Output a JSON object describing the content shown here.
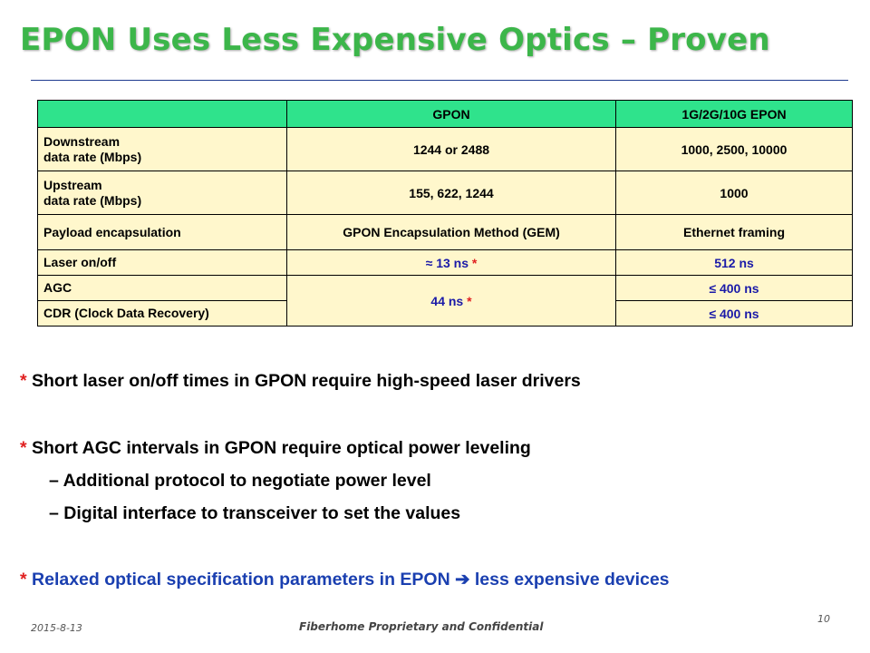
{
  "slide": {
    "title": "EPON Uses Less Expensive Optics – Proven",
    "title_color": "#3cb64a",
    "rule_color": "#1f3a8f"
  },
  "table": {
    "header_bg": "#2fe38c",
    "body_bg": "#fff7cc",
    "headers": [
      "",
      "GPON",
      "1G/2G/10G EPON"
    ],
    "rows": [
      {
        "label_line1": "Downstream",
        "label_line2": "data rate (Mbps)",
        "gpon": "1244 or 2488",
        "epon": "1000, 2500, 10000"
      },
      {
        "label_line1": "Upstream",
        "label_line2": "data rate (Mbps)",
        "gpon": "155, 622, 1244",
        "epon": "1000"
      },
      {
        "label": "Payload encapsulation",
        "gpon": "GPON Encapsulation Method (GEM)",
        "epon": "Ethernet framing"
      },
      {
        "label": "Laser on/off",
        "gpon_symbol": "≈",
        "gpon_value": "13 ns",
        "gpon_star": "*",
        "epon": "512 ns"
      },
      {
        "label": "AGC",
        "gpon_value": "44 ns",
        "gpon_star": "*",
        "epon_symbol": "≤",
        "epon": "400 ns"
      },
      {
        "label": "CDR (Clock Data Recovery)",
        "epon_symbol": "≤",
        "epon": "400 ns"
      }
    ]
  },
  "notes": {
    "star": "*",
    "note1": "Short laser on/off times in GPON require high-speed laser drivers",
    "note2": "Short AGC intervals in GPON require optical power leveling",
    "note2_sub": [
      {
        "dash": "–",
        "text": "Additional protocol to negotiate power level"
      },
      {
        "dash": "–",
        "text": "Digital interface to transceiver to set the values"
      }
    ],
    "note3_a": "Relaxed optical specification parameters in EPON",
    "note3_arrow": "➔",
    "note3_b": "less expensive devices"
  },
  "footer": {
    "date": "2015-8-13",
    "confidential": "Fiberhome Proprietary and Confidential",
    "page": "10"
  }
}
